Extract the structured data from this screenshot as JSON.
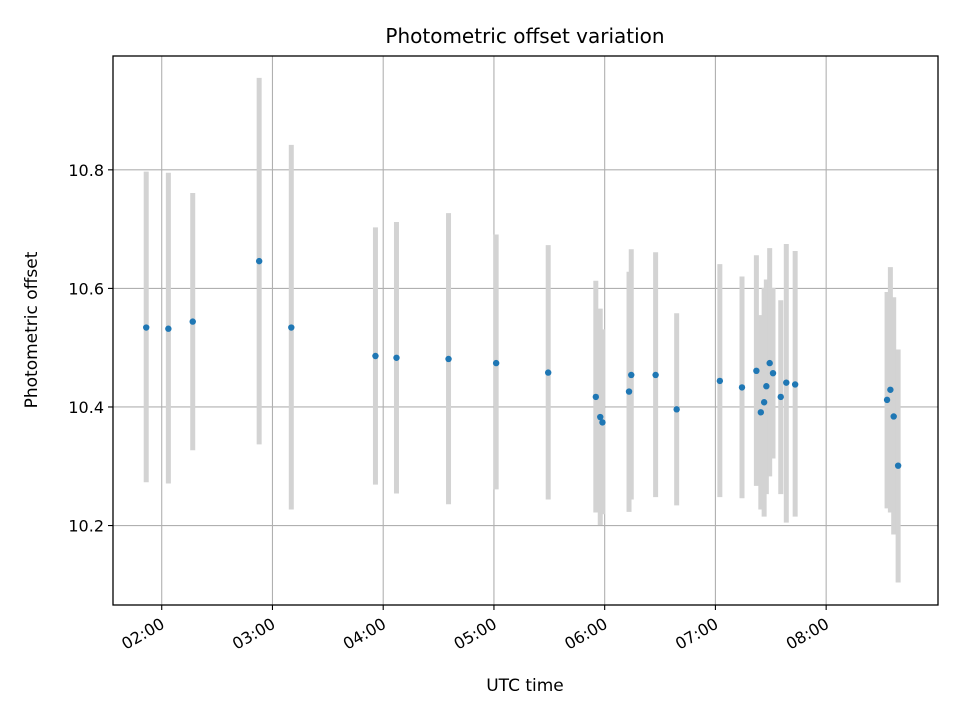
{
  "chart_data": {
    "type": "scatter",
    "title": "Photometric offset variation",
    "xlabel": "UTC time",
    "ylabel": "Photometric offset",
    "x_unit": "hours UTC",
    "xlim": [
      1.56,
      9.01
    ],
    "ylim": [
      10.066,
      10.992
    ],
    "grid": true,
    "x_ticks": [
      {
        "value": 2,
        "label": "02:00"
      },
      {
        "value": 3,
        "label": "03:00"
      },
      {
        "value": 4,
        "label": "04:00"
      },
      {
        "value": 5,
        "label": "05:00"
      },
      {
        "value": 6,
        "label": "06:00"
      },
      {
        "value": 7,
        "label": "07:00"
      },
      {
        "value": 8,
        "label": "08:00"
      }
    ],
    "y_ticks": [
      {
        "value": 10.2,
        "label": "10.2"
      },
      {
        "value": 10.4,
        "label": "10.4"
      },
      {
        "value": 10.6,
        "label": "10.6"
      },
      {
        "value": 10.8,
        "label": "10.8"
      }
    ],
    "colors": {
      "points": "#1f77b4",
      "error_bars": "#d3d3d3",
      "grid": "#b0b0b0"
    },
    "points": [
      {
        "x": 1.86,
        "y": 10.534,
        "lo": 10.273,
        "hi": 10.797
      },
      {
        "x": 2.06,
        "y": 10.532,
        "lo": 10.271,
        "hi": 10.795
      },
      {
        "x": 2.28,
        "y": 10.544,
        "lo": 10.327,
        "hi": 10.761
      },
      {
        "x": 2.88,
        "y": 10.646,
        "lo": 10.337,
        "hi": 10.955
      },
      {
        "x": 3.17,
        "y": 10.534,
        "lo": 10.227,
        "hi": 10.842
      },
      {
        "x": 3.93,
        "y": 10.486,
        "lo": 10.269,
        "hi": 10.703
      },
      {
        "x": 4.12,
        "y": 10.483,
        "lo": 10.254,
        "hi": 10.712
      },
      {
        "x": 4.59,
        "y": 10.481,
        "lo": 10.236,
        "hi": 10.727
      },
      {
        "x": 5.02,
        "y": 10.474,
        "lo": 10.261,
        "hi": 10.691
      },
      {
        "x": 5.49,
        "y": 10.458,
        "lo": 10.244,
        "hi": 10.673
      },
      {
        "x": 5.92,
        "y": 10.417,
        "lo": 10.222,
        "hi": 10.613
      },
      {
        "x": 5.96,
        "y": 10.383,
        "lo": 10.201,
        "hi": 10.566
      },
      {
        "x": 5.98,
        "y": 10.374,
        "lo": 10.219,
        "hi": 10.531
      },
      {
        "x": 6.22,
        "y": 10.426,
        "lo": 10.223,
        "hi": 10.628
      },
      {
        "x": 6.24,
        "y": 10.454,
        "lo": 10.244,
        "hi": 10.666
      },
      {
        "x": 6.46,
        "y": 10.454,
        "lo": 10.248,
        "hi": 10.661
      },
      {
        "x": 6.65,
        "y": 10.396,
        "lo": 10.234,
        "hi": 10.558
      },
      {
        "x": 7.04,
        "y": 10.444,
        "lo": 10.248,
        "hi": 10.641
      },
      {
        "x": 7.24,
        "y": 10.433,
        "lo": 10.246,
        "hi": 10.62
      },
      {
        "x": 7.37,
        "y": 10.461,
        "lo": 10.267,
        "hi": 10.656
      },
      {
        "x": 7.41,
        "y": 10.391,
        "lo": 10.227,
        "hi": 10.555
      },
      {
        "x": 7.44,
        "y": 10.408,
        "lo": 10.215,
        "hi": 10.601
      },
      {
        "x": 7.46,
        "y": 10.435,
        "lo": 10.253,
        "hi": 10.615
      },
      {
        "x": 7.49,
        "y": 10.474,
        "lo": 10.283,
        "hi": 10.668
      },
      {
        "x": 7.52,
        "y": 10.457,
        "lo": 10.313,
        "hi": 10.601
      },
      {
        "x": 7.59,
        "y": 10.417,
        "lo": 10.253,
        "hi": 10.58
      },
      {
        "x": 7.64,
        "y": 10.441,
        "lo": 10.205,
        "hi": 10.675
      },
      {
        "x": 7.72,
        "y": 10.438,
        "lo": 10.215,
        "hi": 10.663
      },
      {
        "x": 8.55,
        "y": 10.412,
        "lo": 10.229,
        "hi": 10.594
      },
      {
        "x": 8.58,
        "y": 10.429,
        "lo": 10.222,
        "hi": 10.636
      },
      {
        "x": 8.61,
        "y": 10.384,
        "lo": 10.185,
        "hi": 10.585
      },
      {
        "x": 8.65,
        "y": 10.301,
        "lo": 10.104,
        "hi": 10.497
      }
    ]
  }
}
